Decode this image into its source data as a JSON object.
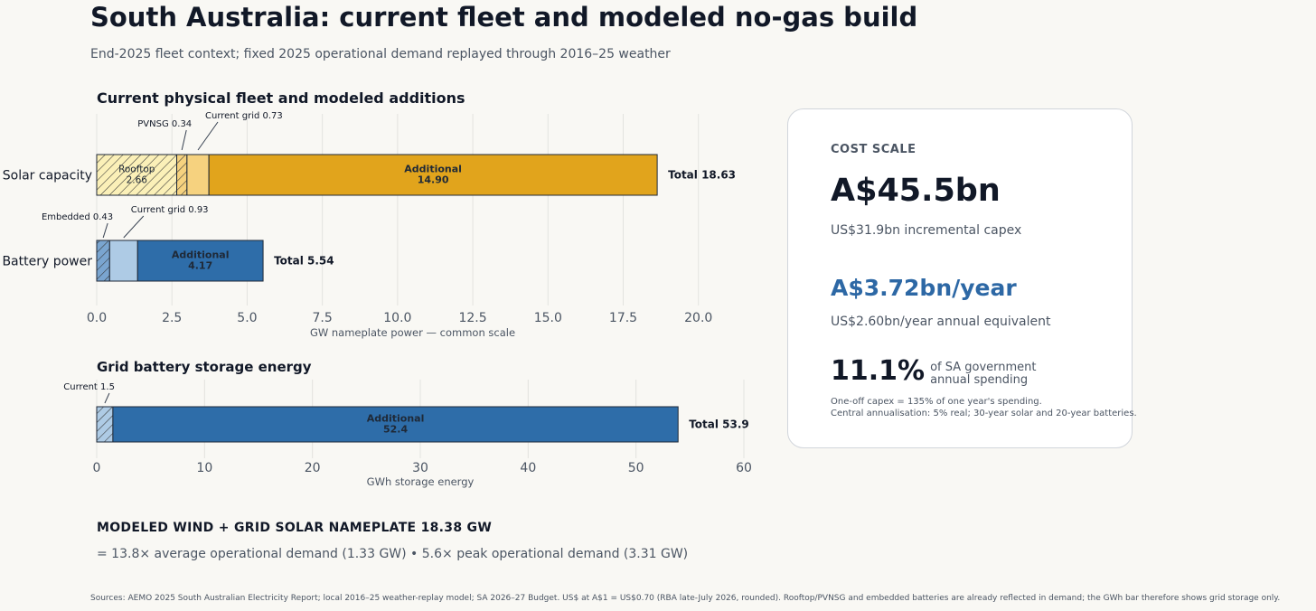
{
  "title": "South Australia: current fleet and modeled no-gas build",
  "subtitle": "End-2025 fleet context; fixed 2025 operational demand replayed through 2016–25 weather",
  "colors": {
    "solar_additional": "#e1a41c",
    "solar_current": "#f6d27f",
    "solar_rooftop": "#fbf0b8",
    "battery_additional": "#2e6da9",
    "battery_current": "#aecbe5",
    "battery_embedded": "#7aa5d0"
  },
  "chart_data": [
    {
      "type": "bar",
      "orientation": "horizontal",
      "stacked": true,
      "title": "Current physical fleet and modeled additions",
      "xlabel": "GW nameplate power — common scale",
      "xlim": [
        0,
        21
      ],
      "xticks": [
        "0.0",
        "2.5",
        "5.0",
        "7.5",
        "10.0",
        "12.5",
        "15.0",
        "17.5",
        "20.0"
      ],
      "grid": true,
      "categories": [
        "Solar capacity",
        "Battery power"
      ],
      "rows": [
        {
          "category": "Solar capacity",
          "total_label": "Total 18.63",
          "segments": [
            {
              "name": "Rooftop",
              "value": 2.66,
              "label": "Rooftop\n2.66",
              "hatched": true,
              "color_key": "solar_rooftop"
            },
            {
              "name": "PVNSG",
              "value": 0.34,
              "label": "PVNSG 0.34",
              "hatched": true,
              "color_key": "solar_current"
            },
            {
              "name": "Current grid",
              "value": 0.73,
              "label": "Current grid 0.73",
              "hatched": false,
              "color_key": "solar_current"
            },
            {
              "name": "Additional",
              "value": 14.9,
              "label": "Additional\n14.90",
              "hatched": false,
              "color_key": "solar_additional"
            }
          ]
        },
        {
          "category": "Battery power",
          "total_label": "Total 5.54",
          "segments": [
            {
              "name": "Embedded",
              "value": 0.43,
              "label": "Embedded 0.43",
              "hatched": true,
              "color_key": "battery_embedded"
            },
            {
              "name": "Current grid",
              "value": 0.93,
              "label": "Current grid 0.93",
              "hatched": false,
              "color_key": "battery_current"
            },
            {
              "name": "Additional",
              "value": 4.17,
              "label": "Additional\n4.17",
              "hatched": false,
              "color_key": "battery_additional"
            }
          ]
        }
      ]
    },
    {
      "type": "bar",
      "orientation": "horizontal",
      "stacked": true,
      "title": "Grid battery storage energy",
      "xlabel": "GWh storage energy",
      "xlim": [
        0,
        60
      ],
      "xticks": [
        "0",
        "10",
        "20",
        "30",
        "40",
        "50",
        "60"
      ],
      "grid": true,
      "rows": [
        {
          "category": "",
          "total_label": "Total 53.9",
          "segments": [
            {
              "name": "Current",
              "value": 1.5,
              "label": "Current 1.5",
              "hatched": true,
              "color_key": "battery_current"
            },
            {
              "name": "Additional",
              "value": 52.4,
              "label": "Additional\n52.4",
              "hatched": false,
              "color_key": "battery_additional"
            }
          ]
        }
      ]
    }
  ],
  "cost_card": {
    "heading": "COST SCALE",
    "capex_aud": "A$45.5bn",
    "capex_usd": "US$31.9bn incremental capex",
    "annual_aud": "A$3.72bn/year",
    "annual_usd": "US$2.60bn/year annual equivalent",
    "share_value": "11.1%",
    "share_label": "of SA government annual spending",
    "note1": "One-off capex = 135% of one year's spending.",
    "note2": "Central annualisation: 5% real; 30-year solar and 20-year batteries."
  },
  "wind": {
    "heading": "MODELED WIND + GRID SOLAR NAMEPLATE  18.38 GW",
    "detail": "= 13.8× average operational demand (1.33 GW)  •  5.6× peak operational demand (3.31 GW)"
  },
  "sources": "Sources: AEMO 2025 South Australian Electricity Report; local 2016–25 weather-replay model; SA 2026–27 Budget. US$ at A$1 = US$0.70 (RBA late-July 2026, rounded). Rooftop/PVNSG and embedded batteries are already reflected in demand; the GWh bar therefore shows grid storage only."
}
